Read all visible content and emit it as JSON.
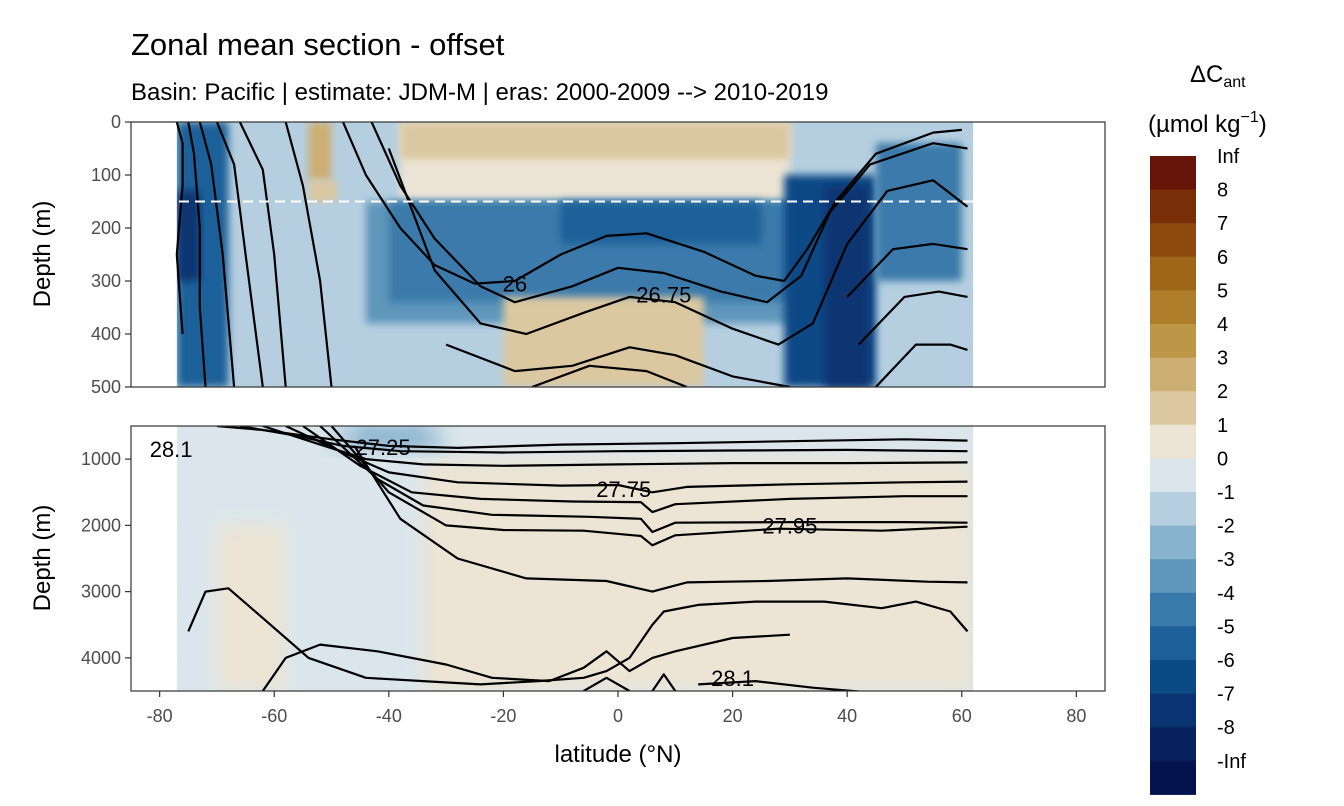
{
  "chart_data": {
    "type": "contour",
    "title": "Zonal mean section - offset",
    "subtitle": "Basin: Pacific | estimate: JDM-M | eras: 2000-2009 --> 2010-2019",
    "xlabel": "latitude (°N)",
    "ylabel": "Depth (m)",
    "xlim": [
      -85,
      85
    ],
    "x_ticks": [
      "-80",
      "-60",
      "-40",
      "-20",
      "0",
      "20",
      "40",
      "60",
      "80"
    ],
    "panels": [
      {
        "name": "upper",
        "ylim": [
          0,
          500
        ],
        "y_ticks": [
          "0",
          "100",
          "200",
          "300",
          "400",
          "500"
        ],
        "dashed_reference_depth": 150
      },
      {
        "name": "lower",
        "ylim": [
          500,
          4500
        ],
        "y_ticks": [
          "1000",
          "2000",
          "3000",
          "4000"
        ]
      }
    ],
    "data_extent_lat": [
      -77,
      62
    ],
    "legend": {
      "title_main": "ΔC",
      "title_sub": "ant",
      "units_main": "(µmol kg",
      "units_sup": "−1",
      "units_close": ")",
      "labels": [
        "Inf",
        "8",
        "7",
        "6",
        "5",
        "4",
        "3",
        "2",
        "1",
        "0",
        "-1",
        "-2",
        "-3",
        "-4",
        "-5",
        "-6",
        "-7",
        "-8",
        "-Inf"
      ],
      "colors": [
        "#661408",
        "#7a2e08",
        "#8c4a0c",
        "#9e6616",
        "#ae7e2a",
        "#bd9648",
        "#cdaf74",
        "#dcc8a0",
        "#ece4d4",
        "#dbe6ec",
        "#b5cfe0",
        "#88b3ce",
        "#5f96bb",
        "#3a7aaa",
        "#1d6099",
        "#0c4a86",
        "#083572",
        "#06215e",
        "#04124e"
      ]
    },
    "isopycnal_labels": [
      {
        "text": "26",
        "lat": -18,
        "depth": 305
      },
      {
        "text": "26.75",
        "lat": 8,
        "depth": 325
      },
      {
        "text": "28.1",
        "lat": -78,
        "depth": 850
      },
      {
        "text": "27.25",
        "lat": -41,
        "depth": 820
      },
      {
        "text": "27.75",
        "lat": 1,
        "depth": 1450
      },
      {
        "text": "27.95",
        "lat": 30,
        "depth": 2000
      },
      {
        "text": "28.1",
        "lat": 20,
        "depth": 4300
      }
    ],
    "anomaly_regions": [
      {
        "panel": "upper",
        "delta_cant": -1,
        "lat": [
          -77,
          62
        ],
        "depth": [
          0,
          500
        ]
      },
      {
        "panel": "upper",
        "delta_cant": 1,
        "lat": [
          -38,
          30
        ],
        "depth": [
          0,
          150
        ]
      },
      {
        "panel": "upper",
        "delta_cant": 2,
        "lat": [
          -38,
          30
        ],
        "depth": [
          0,
          70
        ]
      },
      {
        "panel": "upper",
        "delta_cant": 3,
        "lat": [
          -54,
          -50
        ],
        "depth": [
          0,
          110
        ]
      },
      {
        "panel": "upper",
        "delta_cant": 2,
        "lat": [
          -54,
          -49
        ],
        "depth": [
          110,
          150
        ]
      },
      {
        "panel": "upper",
        "delta_cant": -3,
        "lat": [
          -44,
          38
        ],
        "depth": [
          150,
          380
        ]
      },
      {
        "panel": "upper",
        "delta_cant": -4,
        "lat": [
          -40,
          35
        ],
        "depth": [
          150,
          340
        ]
      },
      {
        "panel": "upper",
        "delta_cant": -5,
        "lat": [
          -10,
          25
        ],
        "depth": [
          150,
          230
        ]
      },
      {
        "panel": "upper",
        "delta_cant": -6,
        "lat": [
          29,
          45
        ],
        "depth": [
          100,
          500
        ]
      },
      {
        "panel": "upper",
        "delta_cant": -7,
        "lat": [
          36,
          44
        ],
        "depth": [
          120,
          500
        ]
      },
      {
        "panel": "upper",
        "delta_cant": -5,
        "lat": [
          -77,
          -68
        ],
        "depth": [
          0,
          500
        ]
      },
      {
        "panel": "upper",
        "delta_cant": -7,
        "lat": [
          -77,
          -73
        ],
        "depth": [
          130,
          300
        ]
      },
      {
        "panel": "upper",
        "delta_cant": 2,
        "lat": [
          -20,
          15
        ],
        "depth": [
          330,
          500
        ]
      },
      {
        "panel": "upper",
        "delta_cant": -4,
        "lat": [
          45,
          60
        ],
        "depth": [
          40,
          300
        ]
      },
      {
        "panel": "lower",
        "delta_cant": 0,
        "lat": [
          -77,
          62
        ],
        "depth": [
          500,
          4500
        ]
      },
      {
        "panel": "lower",
        "delta_cant": 1,
        "lat": [
          -34,
          62
        ],
        "depth": [
          1000,
          4500
        ]
      },
      {
        "panel": "lower",
        "delta_cant": 1,
        "lat": [
          -70,
          -58
        ],
        "depth": [
          2000,
          4500
        ]
      },
      {
        "panel": "lower",
        "delta_cant": -1,
        "lat": [
          -50,
          -30
        ],
        "depth": [
          500,
          900
        ]
      },
      {
        "panel": "lower",
        "delta_cant": -2,
        "lat": [
          -46,
          -33
        ],
        "depth": [
          500,
          800
        ]
      }
    ]
  }
}
